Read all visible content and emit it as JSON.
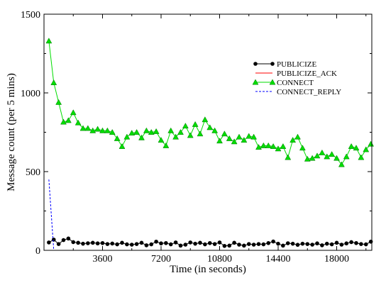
{
  "chart_data": {
    "type": "line",
    "xlabel": "Time (in seconds)",
    "ylabel": "Message count (per 5 mins)",
    "xlim": [
      0,
      20160
    ],
    "ylim": [
      0,
      1500
    ],
    "xticks": [
      3600,
      7200,
      10800,
      14400,
      18000
    ],
    "yticks": [
      0,
      500,
      1000,
      1500
    ],
    "grid": false,
    "legend_position": "top-right",
    "series": [
      {
        "name": "PUBLICIZE",
        "color": "#000000",
        "marker": "circle",
        "dash": "solid",
        "x": [
          300,
          600,
          900,
          1200,
          1500,
          1800,
          2100,
          2400,
          2700,
          3000,
          3300,
          3600,
          3900,
          4200,
          4500,
          4800,
          5100,
          5400,
          5700,
          6000,
          6300,
          6600,
          6900,
          7200,
          7500,
          7800,
          8100,
          8400,
          8700,
          9000,
          9300,
          9600,
          9900,
          10200,
          10500,
          10800,
          11100,
          11400,
          11700,
          12000,
          12300,
          12600,
          12900,
          13200,
          13500,
          13800,
          14100,
          14400,
          14700,
          15000,
          15300,
          15600,
          15900,
          16200,
          16500,
          16800,
          17100,
          17400,
          17700,
          18000,
          18300,
          18600,
          18900,
          19200,
          19500,
          19800,
          20100
        ],
        "y": [
          50,
          68,
          40,
          65,
          75,
          52,
          48,
          42,
          45,
          48,
          44,
          46,
          40,
          43,
          38,
          48,
          38,
          36,
          40,
          48,
          32,
          38,
          55,
          44,
          46,
          38,
          50,
          30,
          36,
          50,
          42,
          48,
          38,
          46,
          40,
          50,
          28,
          30,
          48,
          36,
          30,
          40,
          36,
          40,
          38,
          46,
          56,
          42,
          30,
          45,
          42,
          35,
          42,
          40,
          36,
          44,
          32,
          42,
          38,
          48,
          36,
          44,
          52,
          46,
          40,
          38,
          55
        ]
      },
      {
        "name": "PUBLICIZE_ACK",
        "color": "#ff0000",
        "marker": "none",
        "dash": "solid",
        "x": [
          300,
          600
        ],
        "y": [
          0,
          0
        ]
      },
      {
        "name": "CONNECT",
        "color": "#00dd00",
        "marker": "triangle",
        "dash": "solid",
        "x": [
          300,
          600,
          900,
          1200,
          1500,
          1800,
          2100,
          2400,
          2700,
          3000,
          3300,
          3600,
          3900,
          4200,
          4500,
          4800,
          5100,
          5400,
          5700,
          6000,
          6300,
          6600,
          6900,
          7200,
          7500,
          7800,
          8100,
          8400,
          8700,
          9000,
          9300,
          9600,
          9900,
          10200,
          10500,
          10800,
          11100,
          11400,
          11700,
          12000,
          12300,
          12600,
          12900,
          13200,
          13500,
          13800,
          14100,
          14400,
          14700,
          15000,
          15300,
          15600,
          15900,
          16200,
          16500,
          16800,
          17100,
          17400,
          17700,
          18000,
          18300,
          18600,
          18900,
          19200,
          19500,
          19800,
          20100
        ],
        "y": [
          1330,
          1065,
          940,
          815,
          825,
          875,
          810,
          775,
          775,
          760,
          770,
          760,
          760,
          750,
          710,
          660,
          720,
          745,
          750,
          715,
          760,
          750,
          755,
          700,
          665,
          760,
          720,
          750,
          790,
          730,
          800,
          740,
          830,
          780,
          760,
          695,
          740,
          710,
          690,
          720,
          700,
          725,
          720,
          655,
          665,
          665,
          660,
          645,
          660,
          590,
          700,
          720,
          650,
          580,
          585,
          600,
          620,
          595,
          610,
          585,
          545,
          595,
          660,
          650,
          590,
          640,
          675
        ]
      },
      {
        "name": "CONNECT_REPLY",
        "color": "#0000ff",
        "marker": "none",
        "dash": "dashed",
        "x": [
          300,
          600,
          900
        ],
        "y": [
          450,
          0,
          0
        ]
      }
    ]
  }
}
